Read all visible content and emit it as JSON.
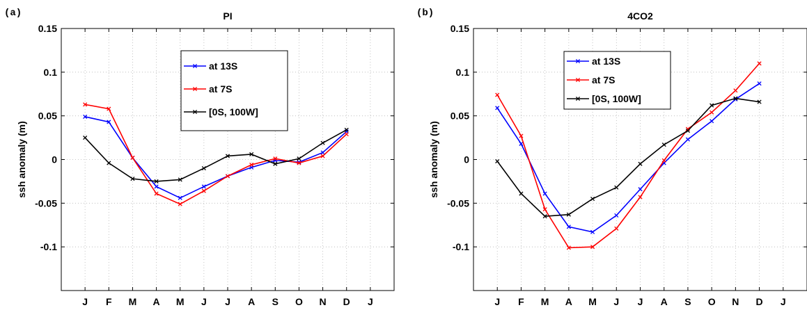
{
  "chart_data": [
    {
      "type": "line",
      "panel_label": "(a)",
      "title": "PI",
      "xlabel": "",
      "ylabel": "ssh anomaly (m)",
      "x": [
        "J",
        "F",
        "M",
        "A",
        "M",
        "J",
        "J",
        "A",
        "S",
        "O",
        "N",
        "D"
      ],
      "xtick_labels": [
        "J",
        "F",
        "M",
        "A",
        "M",
        "J",
        "J",
        "A",
        "S",
        "O",
        "N",
        "D",
        "J"
      ],
      "ylim": [
        -0.15,
        0.15
      ],
      "yticks": [
        "0.15",
        "0.1",
        "0.05",
        "0",
        "-0.05",
        "-0.1"
      ],
      "grid": true,
      "legend_placement": "top-center",
      "series": [
        {
          "name": "at 13S",
          "color": "#0000ff",
          "values": [
            0.049,
            0.043,
            0.002,
            -0.031,
            -0.044,
            -0.031,
            -0.019,
            -0.009,
            -0.001,
            -0.003,
            0.008,
            0.032
          ]
        },
        {
          "name": "at 7S",
          "color": "#ff0000",
          "values": [
            0.063,
            0.058,
            0.002,
            -0.039,
            -0.051,
            -0.036,
            -0.019,
            -0.006,
            0.001,
            -0.004,
            0.004,
            0.029
          ]
        },
        {
          "name": "[0S, 100W]",
          "color": "#000000",
          "values": [
            0.025,
            -0.004,
            -0.022,
            -0.025,
            -0.023,
            -0.01,
            0.004,
            0.006,
            -0.005,
            0.001,
            0.019,
            0.034
          ]
        }
      ]
    },
    {
      "type": "line",
      "panel_label": "(b)",
      "title": "4CO2",
      "xlabel": "",
      "ylabel": "ssh anomaly (m)",
      "x": [
        "J",
        "F",
        "M",
        "A",
        "M",
        "J",
        "J",
        "A",
        "S",
        "O",
        "N",
        "D"
      ],
      "xtick_labels": [
        "J",
        "F",
        "M",
        "A",
        "M",
        "J",
        "J",
        "A",
        "S",
        "O",
        "N",
        "D",
        "J"
      ],
      "ylim": [
        -0.15,
        0.15
      ],
      "yticks": [
        "0.15",
        "0.1",
        "0.05",
        "0",
        "-0.05",
        "-0.1"
      ],
      "grid": true,
      "legend_placement": "top-left",
      "series": [
        {
          "name": "at 13S",
          "color": "#0000ff",
          "values": [
            0.059,
            0.018,
            -0.039,
            -0.077,
            -0.083,
            -0.064,
            -0.034,
            -0.004,
            0.023,
            0.044,
            0.069,
            0.087
          ]
        },
        {
          "name": "at 7S",
          "color": "#ff0000",
          "values": [
            0.074,
            0.027,
            -0.057,
            -0.101,
            -0.1,
            -0.079,
            -0.043,
            -0.001,
            0.035,
            0.054,
            0.079,
            0.11
          ]
        },
        {
          "name": "[0S, 100W]",
          "color": "#000000",
          "values": [
            -0.002,
            -0.039,
            -0.065,
            -0.063,
            -0.045,
            -0.032,
            -0.005,
            0.017,
            0.033,
            0.062,
            0.07,
            0.066
          ]
        }
      ]
    }
  ]
}
